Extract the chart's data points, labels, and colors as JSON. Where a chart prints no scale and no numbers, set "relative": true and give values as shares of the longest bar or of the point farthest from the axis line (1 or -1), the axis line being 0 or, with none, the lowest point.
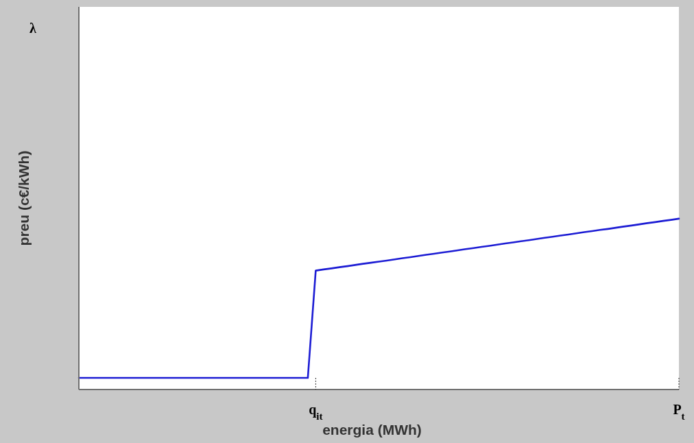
{
  "chart_data": {
    "type": "line",
    "relative": true,
    "xlabel": "energia (MWh)",
    "ylabel": "preu (c€/kWh)",
    "annotations": [
      "λ"
    ],
    "categories": [
      null,
      null,
      null,
      null,
      null,
      null,
      null,
      null,
      null,
      null,
      null,
      null,
      null,
      null,
      null,
      null,
      null,
      null,
      null,
      null,
      null,
      null,
      null,
      null,
      null,
      null,
      null,
      null,
      null,
      null,
      "q$_{it}$",
      null,
      null,
      null,
      null,
      null,
      null,
      null,
      null,
      null,
      null,
      null,
      null,
      null,
      null,
      null,
      null,
      null,
      null,
      null,
      null,
      null,
      null,
      null,
      null,
      null,
      null,
      null,
      null,
      null,
      null,
      null,
      null,
      null,
      null,
      null,
      null,
      null,
      null,
      null,
      null,
      null,
      null,
      null,
      null,
      null,
      "P$_{t}$"
    ],
    "series": [
      {
        "color": "#1c1cd4",
        "values": [
          0.068,
          0.068,
          0.068,
          0.068,
          0.068,
          0.068,
          0.068,
          0.068,
          0.068,
          0.068,
          0.068,
          0.068,
          0.068,
          0.068,
          0.068,
          0.068,
          0.068,
          0.068,
          0.068,
          0.068,
          0.068,
          0.068,
          0.068,
          0.068,
          0.068,
          0.068,
          0.068,
          0.068,
          0.068,
          0.068,
          0.696,
          0.703,
          0.709,
          0.716,
          0.722,
          0.729,
          0.736,
          0.742,
          0.749,
          0.755,
          0.762,
          0.769,
          0.775,
          0.782,
          0.789,
          0.795,
          0.802,
          0.808,
          0.815,
          0.822,
          0.828,
          0.835,
          0.841,
          0.848,
          0.855,
          0.861,
          0.868,
          0.874,
          0.881,
          0.888,
          0.894,
          0.901,
          0.907,
          0.914,
          0.921,
          0.927,
          0.934,
          0.94,
          0.947,
          0.954,
          0.96,
          0.967,
          0.974,
          0.98,
          0.987,
          0.993,
          1
        ]
      }
    ],
    "line_style": "solid",
    "grid": false
  }
}
